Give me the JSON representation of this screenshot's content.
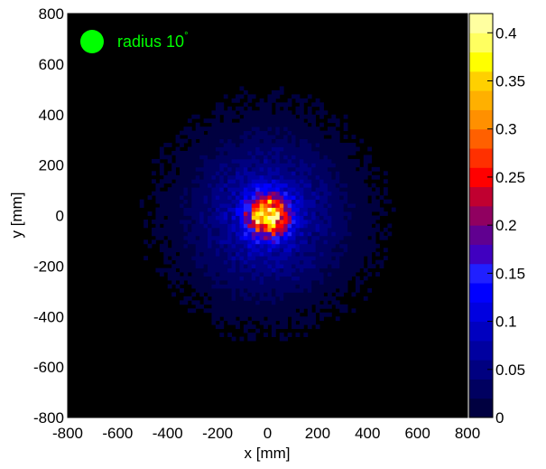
{
  "chart_data": {
    "type": "heatmap",
    "xlabel": "x [mm]",
    "ylabel": "y [mm]",
    "xlim": [
      -800,
      800
    ],
    "ylim": [
      -800,
      800
    ],
    "x_ticks": [
      "-800",
      "-600",
      "-400",
      "-200",
      "0",
      "200",
      "400",
      "600",
      "800"
    ],
    "y_ticks": [
      "800",
      "600",
      "400",
      "200",
      "0",
      "-200",
      "-400",
      "-600",
      "-800"
    ],
    "colorbar": {
      "range": [
        0,
        0.42
      ],
      "ticks": [
        "0",
        "0.05",
        "0.1",
        "0.15",
        "0.2",
        "0.25",
        "0.3",
        "0.35",
        "0.4"
      ],
      "tick_values": [
        0,
        0.05,
        0.1,
        0.15,
        0.2,
        0.25,
        0.3,
        0.35,
        0.4
      ],
      "colors": [
        "#000040",
        "#000060",
        "#000080",
        "#0000a0",
        "#0000c0",
        "#0000e0",
        "#0000ff",
        "#2020ff",
        "#4000c0",
        "#600090",
        "#900060",
        "#c00030",
        "#ff0000",
        "#ff3000",
        "#ff6000",
        "#ff9000",
        "#ffb000",
        "#ffd000",
        "#ffff00",
        "#ffff60",
        "#ffffa0"
      ]
    },
    "distribution": {
      "center": [
        0,
        0
      ],
      "peak_value": 0.4,
      "background_value": 0,
      "extent_mm": 450
    },
    "legend": {
      "marker_color": "#00ff00",
      "label": "radius 10",
      "label_superscript": "°",
      "placement": "top-left"
    },
    "background_color": "#000000"
  }
}
